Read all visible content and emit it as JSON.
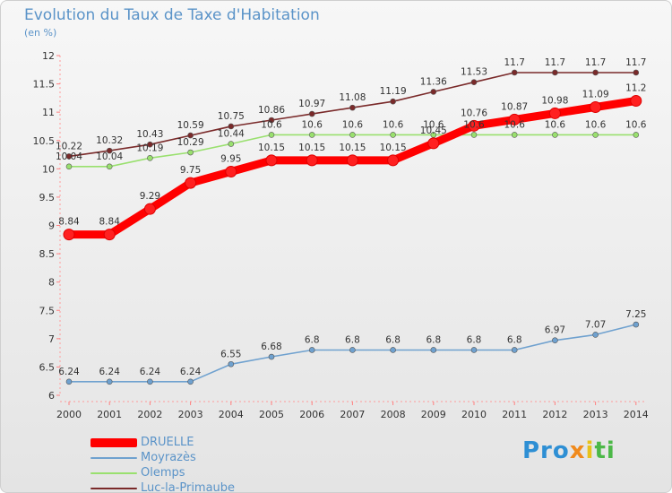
{
  "header": {
    "title": "Evolution du Taux de Taxe d'Habitation",
    "unit": "(en %)"
  },
  "brand": {
    "name": "Proxiti",
    "parts": [
      "Pro",
      "x",
      "i",
      "ti"
    ]
  },
  "chart_data": {
    "type": "line",
    "title": "Evolution du Taux de Taxe d'Habitation",
    "ylabel": "(en %)",
    "xlabel": "",
    "x": [
      "2000",
      "2001",
      "2002",
      "2003",
      "2004",
      "2005",
      "2006",
      "2007",
      "2008",
      "2009",
      "2010",
      "2011",
      "2012",
      "2013",
      "2014"
    ],
    "ylim": [
      6,
      12
    ],
    "yticks": [
      "6",
      "6.5",
      "7",
      "7.5",
      "8",
      "8.5",
      "9",
      "9.5",
      "10",
      "10.5",
      "11",
      "11.5",
      "12"
    ],
    "grid": false,
    "legend_position": "bottom-left",
    "series": [
      {
        "name": "DRUELLE",
        "color": "#ff0000",
        "values": [
          8.84,
          8.84,
          9.29,
          9.75,
          9.95,
          10.15,
          10.15,
          10.15,
          10.15,
          10.45,
          10.76,
          10.87,
          10.98,
          11.09,
          11.2
        ],
        "labels": [
          "8.84",
          "8.84",
          "9.29",
          "9.75",
          "9.95",
          "10.15",
          "10.15",
          "10.15",
          "10.15",
          "10.45",
          "10.76",
          "10.87",
          "10.98",
          "11.09",
          "11.2"
        ]
      },
      {
        "name": "Moyrazès",
        "color": "#6fa1cf",
        "values": [
          6.24,
          6.24,
          6.24,
          6.24,
          6.55,
          6.68,
          6.8,
          6.8,
          6.8,
          6.8,
          6.8,
          6.8,
          6.97,
          7.07,
          7.25
        ],
        "labels": [
          "6.24",
          "6.24",
          "6.24",
          "6.24",
          "6.55",
          "6.68",
          "6.8",
          "6.8",
          "6.8",
          "6.8",
          "6.8",
          "6.8",
          "6.97",
          "7.07",
          "7.25"
        ]
      },
      {
        "name": "Olemps",
        "color": "#99e06e",
        "values": [
          10.04,
          10.04,
          10.19,
          10.29,
          10.44,
          10.6,
          10.6,
          10.6,
          10.6,
          10.6,
          10.6,
          10.6,
          10.6,
          10.6,
          10.6
        ],
        "labels": [
          "10.04",
          "10.04",
          "10.19",
          "10.29",
          "10.44",
          "10.6",
          "10.6",
          "10.6",
          "10.6",
          "10.6",
          "10.6",
          "10.6",
          "10.6",
          "10.6",
          "10.6"
        ]
      },
      {
        "name": "Luc-la-Primaube",
        "color": "#7a2a2a",
        "values": [
          10.22,
          10.32,
          10.43,
          10.59,
          10.75,
          10.86,
          10.97,
          11.08,
          11.19,
          11.36,
          11.53,
          11.7,
          11.7,
          11.7,
          11.7
        ],
        "labels": [
          "10.22",
          "10.32",
          "10.43",
          "10.59",
          "10.75",
          "10.86",
          "10.97",
          "11.08",
          "11.19",
          "11.36",
          "11.53",
          "11.7",
          "11.7",
          "11.7",
          "11.7"
        ]
      }
    ]
  }
}
